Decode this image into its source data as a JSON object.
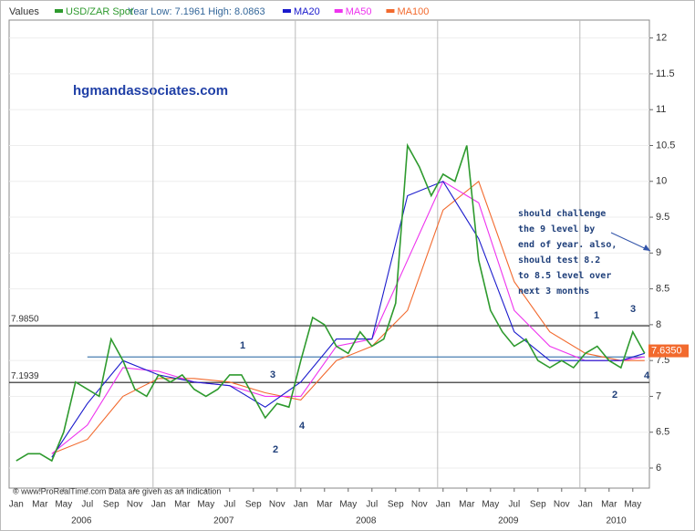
{
  "chart_data": {
    "type": "line",
    "title": "Values",
    "subtitle": "Year Low: 7.1961 High: 8.0863",
    "watermark": "hgmandassociates.com",
    "source": "© www.ProRealTime.com Data are given as an indication",
    "series": [
      {
        "name": "USD/ZAR Spot",
        "color": "#2e9a2e",
        "x": [
          0,
          1,
          2,
          3,
          4,
          5,
          6,
          7,
          8,
          9,
          10,
          11,
          12,
          13,
          14,
          15,
          16,
          17,
          18,
          19,
          20,
          21,
          22,
          23,
          24,
          25,
          26,
          27,
          28,
          29,
          30,
          31,
          32,
          33,
          34,
          35,
          36,
          37,
          38,
          39,
          40,
          41,
          42,
          43,
          44,
          45,
          46,
          47,
          48,
          49,
          50,
          51,
          52,
          53
        ],
        "values": [
          6.1,
          6.2,
          6.2,
          6.1,
          6.5,
          7.2,
          7.1,
          7.0,
          7.8,
          7.5,
          7.1,
          7.0,
          7.3,
          7.2,
          7.3,
          7.1,
          7.0,
          7.1,
          7.3,
          7.3,
          7.0,
          6.7,
          6.9,
          6.85,
          7.5,
          8.1,
          8.0,
          7.7,
          7.6,
          7.9,
          7.7,
          7.8,
          8.3,
          10.5,
          10.2,
          9.8,
          10.1,
          10.0,
          10.5,
          8.9,
          8.2,
          7.9,
          7.7,
          7.8,
          7.5,
          7.4,
          7.5,
          7.4,
          7.6,
          7.7,
          7.5,
          7.4,
          7.9,
          7.6
        ]
      },
      {
        "name": "MA20",
        "color": "#1a1acc",
        "x": [
          3,
          6,
          9,
          12,
          15,
          18,
          21,
          24,
          27,
          30,
          33,
          36,
          39,
          42,
          45,
          48,
          51,
          53
        ],
        "values": [
          6.15,
          6.9,
          7.5,
          7.3,
          7.2,
          7.15,
          6.85,
          7.2,
          7.8,
          7.8,
          9.8,
          10.0,
          9.2,
          7.9,
          7.5,
          7.5,
          7.5,
          7.6
        ]
      },
      {
        "name": "MA50",
        "color": "#ee33ee",
        "x": [
          3,
          6,
          9,
          12,
          15,
          18,
          21,
          24,
          27,
          30,
          33,
          36,
          39,
          42,
          45,
          48,
          51,
          53
        ],
        "values": [
          6.2,
          6.6,
          7.4,
          7.35,
          7.2,
          7.15,
          7.0,
          7.0,
          7.7,
          7.8,
          8.9,
          10.0,
          9.7,
          8.2,
          7.7,
          7.5,
          7.5,
          7.55
        ]
      },
      {
        "name": "MA100",
        "color": "#f26a2e",
        "x": [
          3,
          6,
          9,
          12,
          15,
          18,
          21,
          24,
          27,
          30,
          33,
          36,
          39,
          42,
          45,
          48,
          51,
          53
        ],
        "values": [
          6.2,
          6.4,
          7.0,
          7.25,
          7.25,
          7.2,
          7.05,
          6.95,
          7.5,
          7.7,
          8.2,
          9.6,
          10.0,
          8.6,
          7.9,
          7.6,
          7.5,
          7.5
        ]
      }
    ],
    "reference_lines": [
      {
        "value": 7.985,
        "label": "7.9850"
      },
      {
        "value": 7.1939,
        "label": "7.1939"
      }
    ],
    "trend_line": {
      "value": 7.55,
      "x": [
        6,
        53
      ]
    },
    "last_value": {
      "value": 7.635,
      "label": "7.6350"
    },
    "annotations": [
      "1",
      "2",
      "3",
      "4",
      "1",
      "2",
      "3",
      "4"
    ],
    "note": [
      "should challenge",
      "the 9 level by",
      "end of year. also,",
      "should test 8.2",
      "to 8.5 level over",
      "next 3 months"
    ],
    "xlim": [
      -0.6,
      53.4
    ],
    "xticks": [
      {
        "value": 0,
        "label": "Jan"
      },
      {
        "value": 2,
        "label": "Mar"
      },
      {
        "value": 4,
        "label": "May"
      },
      {
        "value": 6,
        "label": "Jul"
      },
      {
        "value": 8,
        "label": "Sep"
      },
      {
        "value": 10,
        "label": "Nov"
      },
      {
        "value": 12,
        "label": "Jan"
      },
      {
        "value": 14,
        "label": "Mar"
      },
      {
        "value": 16,
        "label": "May"
      },
      {
        "value": 18,
        "label": "Jul"
      },
      {
        "value": 20,
        "label": "Sep"
      },
      {
        "value": 22,
        "label": "Nov"
      },
      {
        "value": 24,
        "label": "Jan"
      },
      {
        "value": 26,
        "label": "Mar"
      },
      {
        "value": 28,
        "label": "May"
      },
      {
        "value": 30,
        "label": "Jul"
      },
      {
        "value": 32,
        "label": "Sep"
      },
      {
        "value": 34,
        "label": "Nov"
      },
      {
        "value": 36,
        "label": "Jan"
      },
      {
        "value": 38,
        "label": "Mar"
      },
      {
        "value": 40,
        "label": "May"
      },
      {
        "value": 42,
        "label": "Jul"
      },
      {
        "value": 44,
        "label": "Sep"
      },
      {
        "value": 46,
        "label": "Nov"
      },
      {
        "value": 48,
        "label": "Jan"
      },
      {
        "value": 50,
        "label": "Mar"
      },
      {
        "value": 52,
        "label": "May"
      }
    ],
    "year_ticks": [
      {
        "value": 5.5,
        "label": "2006"
      },
      {
        "value": 17.5,
        "label": "2007"
      },
      {
        "value": 29.5,
        "label": "2008"
      },
      {
        "value": 41.5,
        "label": "2009"
      },
      {
        "value": 50.6,
        "label": "2010"
      }
    ],
    "ylim": [
      5.72,
      12.25
    ],
    "yticks": [
      6,
      6.5,
      7,
      7.5,
      8,
      8.5,
      9,
      9.5,
      10,
      10.5,
      11,
      11.5,
      12
    ],
    "grid": true
  }
}
